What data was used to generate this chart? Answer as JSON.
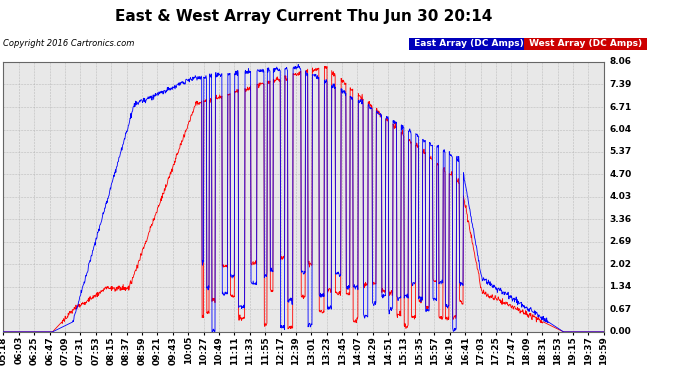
{
  "title": "East & West Array Current Thu Jun 30 20:14",
  "copyright": "Copyright 2016 Cartronics.com",
  "legend_east": "East Array (DC Amps)",
  "legend_west": "West Array (DC Amps)",
  "east_color": "#0000ff",
  "west_color": "#ff0000",
  "legend_east_bg": "#0000bb",
  "legend_west_bg": "#cc0000",
  "yticks": [
    0.0,
    0.67,
    1.34,
    2.02,
    2.69,
    3.36,
    4.03,
    4.7,
    5.37,
    6.04,
    6.71,
    7.39,
    8.06
  ],
  "ymin": 0.0,
  "ymax": 8.06,
  "background_color": "#ffffff",
  "plot_bg_color": "#e8e8e8",
  "grid_color": "#aaaaaa",
  "title_fontsize": 11,
  "tick_fontsize": 6.5,
  "xtick_labels": [
    "05:18",
    "06:03",
    "06:25",
    "06:47",
    "07:09",
    "07:31",
    "07:53",
    "08:15",
    "08:37",
    "08:59",
    "09:21",
    "09:43",
    "10:05",
    "10:27",
    "10:49",
    "11:11",
    "11:33",
    "11:55",
    "12:17",
    "12:39",
    "13:01",
    "13:23",
    "13:45",
    "14:07",
    "14:29",
    "14:51",
    "15:13",
    "15:35",
    "15:57",
    "16:19",
    "16:41",
    "17:03",
    "17:25",
    "17:47",
    "18:09",
    "18:31",
    "18:53",
    "19:15",
    "19:37",
    "19:59"
  ]
}
